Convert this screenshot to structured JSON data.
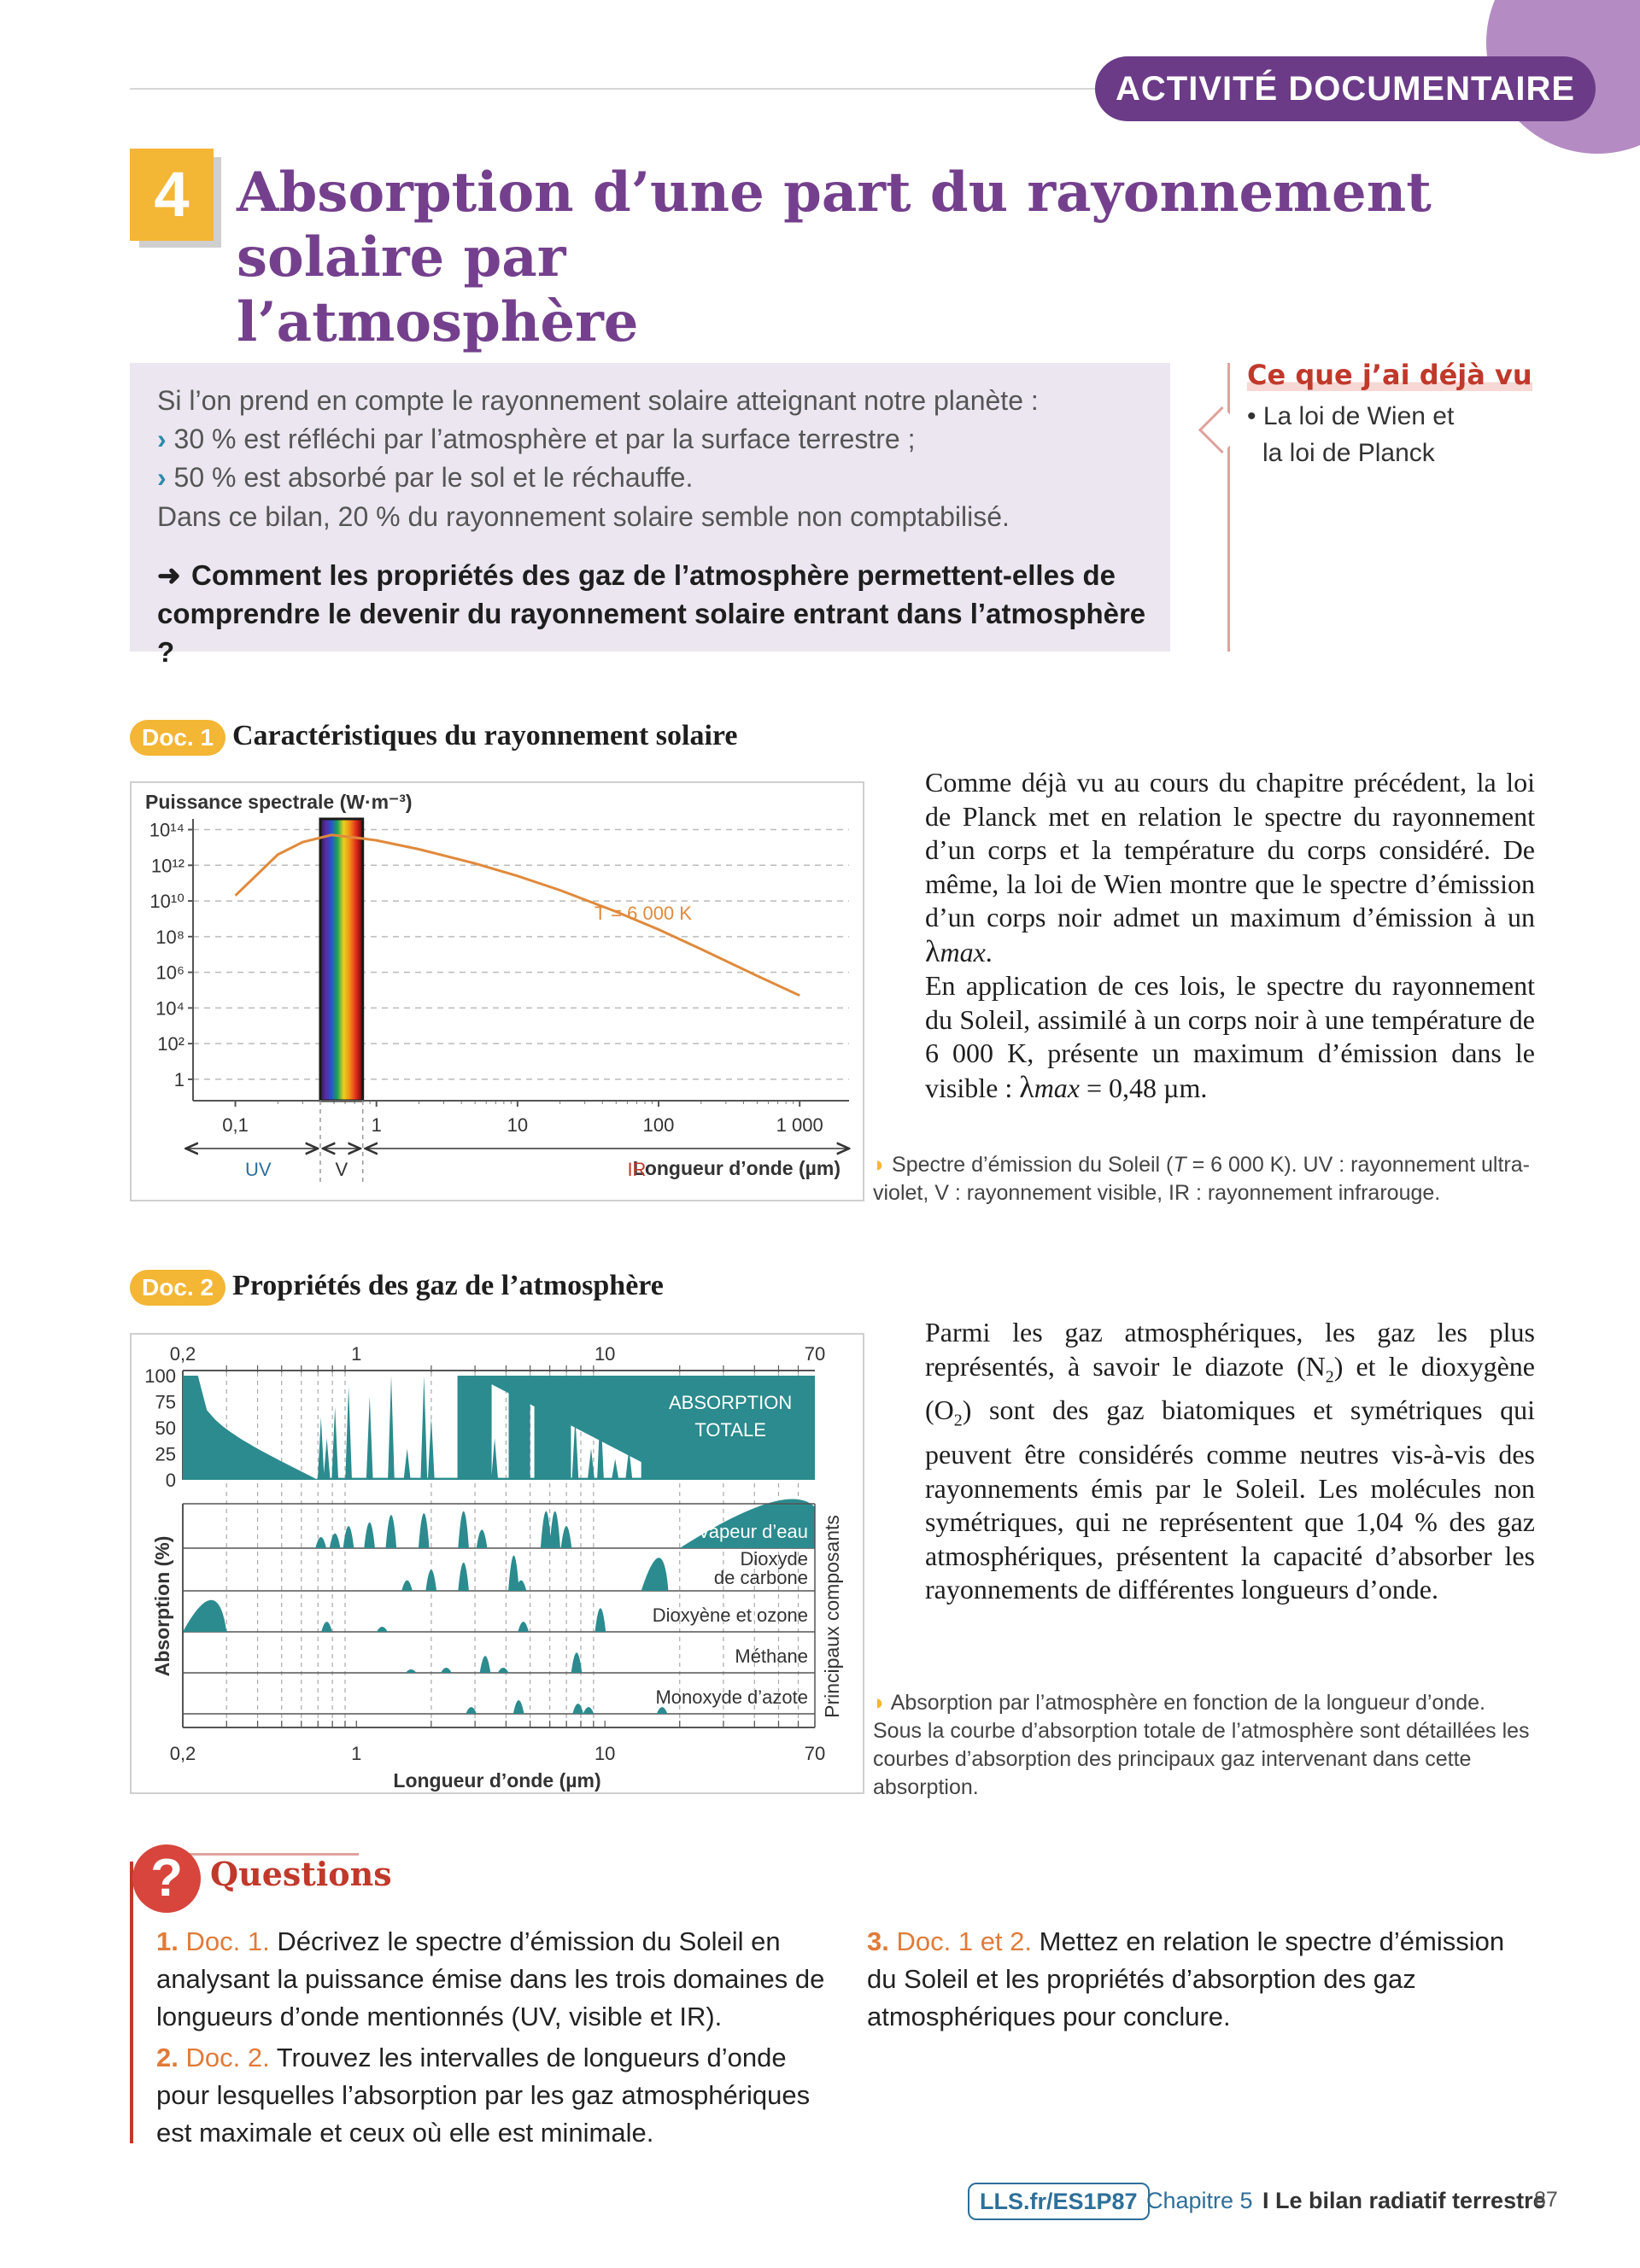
{
  "header": {
    "activity_label": "ACTIVITÉ DOCUMENTAIRE",
    "number": "4",
    "title_line1": "Absorption d’une part du rayonnement solaire par",
    "title_line2": "l’atmosphère"
  },
  "intro": {
    "line1": "Si l’on prend en compte le rayonnement solaire atteignant notre planète :",
    "bullet1": "30 % est réfléchi par l’atmosphère et par la surface terrestre ;",
    "bullet2": "50 % est absorbé par le sol et le réchauffe.",
    "line4": "Dans ce bilan, 20 % du rayonnement solaire semble non comptabilisé.",
    "question": "Comment les propriétés des gaz de l’atmosphère permettent-elles de comprendre le devenir du rayonnement solaire entrant dans l’atmosphère ?"
  },
  "side_note": {
    "title": "Ce que j’ai déjà vu",
    "item1": "• La loi de Wien et",
    "item2": "la loi de Planck"
  },
  "doc1": {
    "tag": "Doc. 1",
    "title": "Caractéristiques du rayonnement solaire",
    "text": "Comme déjà vu au cours du chapitre précédent, la loi de Planck met en relation le spectre du rayonnement d’un corps et la température du corps considéré. De même, la loi de Wien montre que le spectre d’émission d’un corps noir admet un maximum d’émission à un λmax. En application de ces lois, le spectre du rayonnement du Soleil, assimilé à un corps noir à une température de 6 000 K, présente un maximum d’émission dans le visible : λmax = 0,48 µm.",
    "caption": "Spectre d’émission du Soleil (T = 6 000 K). UV : rayonnement ultraviolet, V : rayonnement visible, IR : rayonnement infrarouge."
  },
  "doc2": {
    "tag": "Doc. 2",
    "title": "Propriétés des gaz de l’atmosphère",
    "text": "Parmi les gaz atmosphériques, les gaz les plus représentés, à savoir le diazote (N2) et le dioxygène (O2) sont des gaz biatomiques et symétriques qui peuvent être considérés comme neutres vis-à-vis des rayonnements émis par le Soleil. Les molécules non symétriques, qui ne représentent que 1,04 % des gaz atmosphériques, présentent la capacité d’absorber les rayonnements de différentes longueurs d’onde.",
    "caption": "Absorption par l’atmosphère en fonction de la longueur d’onde. Sous la courbe d’absorption totale de l’atmosphère sont détaillées les courbes d’absorption des principaux gaz intervenant dans cette absorption."
  },
  "chart_data": [
    {
      "type": "line",
      "ylabel": "Puissance spectrale (W·m⁻³)",
      "xlabel": "Longueur d’onde (µm)",
      "x_scale": "log",
      "y_scale": "log",
      "x_ticks": [
        "0,1",
        "1",
        "10",
        "100",
        "1 000"
      ],
      "y_ticks": [
        "1",
        "10²",
        "10⁴",
        "10⁶",
        "10⁸",
        "10¹⁰",
        "10¹²",
        "10¹⁴"
      ],
      "series": [
        {
          "name": "T = 6 000 K",
          "color": "#e08a3c",
          "x": [
            0.1,
            0.2,
            0.3,
            0.48,
            0.8,
            1,
            2,
            5,
            10,
            20,
            50,
            100,
            200,
            500,
            1000
          ],
          "y_log10": [
            10.3,
            12.6,
            13.3,
            13.7,
            13.5,
            13.4,
            12.9,
            12.1,
            11.4,
            10.6,
            9.4,
            8.4,
            7.3,
            5.8,
            4.7
          ]
        }
      ],
      "domains": [
        "UV",
        "V",
        "IR"
      ],
      "visible_band_um": [
        0.4,
        0.8
      ],
      "grid": true
    },
    {
      "type": "area",
      "ylabel": "Absorption (%)",
      "xlabel": "Longueur d’onde (µm)",
      "right_label": "Principaux composants",
      "x_scale": "log",
      "x_ticks": [
        "0,2",
        "1",
        "10",
        "70"
      ],
      "y_ticks": [
        "100",
        "75",
        "50",
        "25",
        "0"
      ],
      "panels": [
        "ABSORPTION TOTALE",
        "Vapeur d’eau",
        "Dioxyde de carbone",
        "Dioxyène et ozone",
        "Méthane",
        "Monoxyde d’azote"
      ],
      "color": "#2b8b8e"
    }
  ],
  "questions": {
    "title": "Questions",
    "q1_num": "1.",
    "q1_doc": "Doc. 1.",
    "q1_text": "Décrivez le spectre d’émission du Soleil en analysant la puissance émise dans les trois domaines de longueurs d’onde mentionnés (UV, visible et IR).",
    "q2_num": "2.",
    "q2_doc": "Doc. 2.",
    "q2_text": "Trouvez les intervalles de longueurs d’onde pour lesquelles l’absorption par les gaz atmosphériques est maximale et ceux où elle est minimale.",
    "q3_num": "3.",
    "q3_doc": "Doc. 1 et 2.",
    "q3_text": "Mettez en relation le spectre d’émission du Soleil et les propriétés d’absorption des gaz atmosphériques pour conclure."
  },
  "footer": {
    "link": "LLS.fr/ES1P87",
    "chapter": "Chapitre 5",
    "title": "I Le bilan radiatif terrestre",
    "page": "87"
  }
}
